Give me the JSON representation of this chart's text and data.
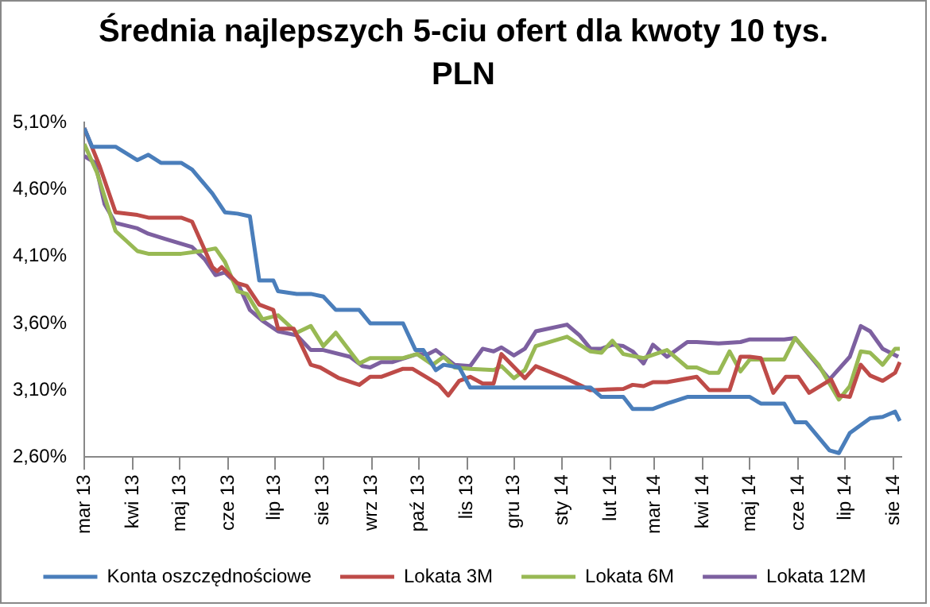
{
  "chart_data": {
    "type": "line",
    "title": "Średnia najlepszych 5-ciu ofert dla kwoty 10 tys. PLN",
    "xlim": [
      "2013-03-01",
      "2014-08-06"
    ],
    "xticks": [
      {
        "value": "2013-03-01",
        "label": "mar 13"
      },
      {
        "value": "2013-04-01",
        "label": "kwi 13"
      },
      {
        "value": "2013-05-01",
        "label": "maj 13"
      },
      {
        "value": "2013-06-01",
        "label": "cze 13"
      },
      {
        "value": "2013-07-01",
        "label": "lip 13"
      },
      {
        "value": "2013-08-01",
        "label": "sie 13"
      },
      {
        "value": "2013-09-01",
        "label": "wrz 13"
      },
      {
        "value": "2013-10-01",
        "label": "paź 13"
      },
      {
        "value": "2013-11-01",
        "label": "lis 13"
      },
      {
        "value": "2013-12-01",
        "label": "gru 13"
      },
      {
        "value": "2014-01-01",
        "label": "sty 14"
      },
      {
        "value": "2014-02-01",
        "label": "lut 14"
      },
      {
        "value": "2014-03-01",
        "label": "mar 14"
      },
      {
        "value": "2014-04-01",
        "label": "kwi 14"
      },
      {
        "value": "2014-05-01",
        "label": "maj 14"
      },
      {
        "value": "2014-06-01",
        "label": "cze 14"
      },
      {
        "value": "2014-07-01",
        "label": "lip 14"
      },
      {
        "value": "2014-08-01",
        "label": "sie 14"
      }
    ],
    "ylim": [
      2.6,
      5.1
    ],
    "yticks": [
      {
        "value": 2.6,
        "label": "2,60%"
      },
      {
        "value": 3.1,
        "label": "3,10%"
      },
      {
        "value": 3.6,
        "label": "3,60%"
      },
      {
        "value": 4.1,
        "label": "4,10%"
      },
      {
        "value": 4.6,
        "label": "4,60%"
      },
      {
        "value": 5.1,
        "label": "5,10%"
      }
    ],
    "legend": "bottom",
    "series": [
      {
        "name": "Konta oszczędnościowe",
        "color": "#4a7ebb",
        "x": [
          "2013-03-01",
          "2013-03-06",
          "2013-03-21",
          "2013-04-04",
          "2013-04-11",
          "2013-04-19",
          "2013-05-02",
          "2013-05-09",
          "2013-05-22",
          "2013-05-30",
          "2013-06-07",
          "2013-06-15",
          "2013-06-21",
          "2013-06-30",
          "2013-07-03",
          "2013-07-15",
          "2013-07-24",
          "2013-08-01",
          "2013-08-09",
          "2013-08-24",
          "2013-08-31",
          "2013-09-21",
          "2013-09-29",
          "2013-10-04",
          "2013-10-12",
          "2013-10-17",
          "2013-10-27",
          "2013-11-03",
          "2014-01-19",
          "2014-01-26",
          "2014-02-09",
          "2014-02-15",
          "2014-02-28",
          "2014-03-09",
          "2014-03-22",
          "2014-05-01",
          "2014-05-08",
          "2014-05-23",
          "2014-05-30",
          "2014-06-06",
          "2014-06-21",
          "2014-06-27",
          "2014-07-04",
          "2014-07-11",
          "2014-07-17",
          "2014-07-25",
          "2014-08-02",
          "2014-08-05"
        ],
        "values": [
          5.06,
          4.92,
          4.92,
          4.82,
          4.86,
          4.8,
          4.8,
          4.75,
          4.57,
          4.43,
          4.42,
          4.4,
          3.92,
          3.92,
          3.84,
          3.82,
          3.82,
          3.8,
          3.7,
          3.7,
          3.6,
          3.6,
          3.4,
          3.4,
          3.25,
          3.29,
          3.27,
          3.12,
          3.12,
          3.05,
          3.05,
          2.96,
          2.96,
          3.0,
          3.05,
          3.05,
          3.0,
          3.0,
          2.86,
          2.86,
          2.65,
          2.63,
          2.78,
          2.84,
          2.89,
          2.9,
          2.94,
          2.87
        ]
      },
      {
        "name": "Lokata 3M",
        "color": "#be4b48",
        "x": [
          "2013-03-01",
          "2013-03-11",
          "2013-03-21",
          "2013-04-04",
          "2013-04-11",
          "2013-05-02",
          "2013-05-09",
          "2013-05-22",
          "2013-05-25",
          "2013-05-28",
          "2013-06-07",
          "2013-06-13",
          "2013-06-21",
          "2013-06-30",
          "2013-07-03",
          "2013-07-13",
          "2013-07-24",
          "2013-07-30",
          "2013-08-11",
          "2013-08-24",
          "2013-08-31",
          "2013-09-07",
          "2013-09-21",
          "2013-09-27",
          "2013-10-07",
          "2013-10-14",
          "2013-10-20",
          "2013-10-27",
          "2013-11-03",
          "2013-11-11",
          "2013-11-18",
          "2013-11-23",
          "2013-12-08",
          "2013-12-15",
          "2014-01-03",
          "2014-01-19",
          "2014-02-09",
          "2014-02-15",
          "2014-02-22",
          "2014-02-28",
          "2014-03-09",
          "2014-03-28",
          "2014-04-05",
          "2014-04-18",
          "2014-04-25",
          "2014-05-01",
          "2014-05-08",
          "2014-05-16",
          "2014-05-24",
          "2014-06-01",
          "2014-06-08",
          "2014-06-22",
          "2014-06-27",
          "2014-07-04",
          "2014-07-11",
          "2014-07-17",
          "2014-07-25",
          "2014-08-02",
          "2014-08-05"
        ],
        "values": [
          5.06,
          4.77,
          4.43,
          4.41,
          4.39,
          4.39,
          4.36,
          4.02,
          3.99,
          4.02,
          3.9,
          3.88,
          3.74,
          3.7,
          3.56,
          3.56,
          3.29,
          3.27,
          3.19,
          3.14,
          3.2,
          3.2,
          3.26,
          3.26,
          3.19,
          3.14,
          3.06,
          3.17,
          3.2,
          3.15,
          3.15,
          3.37,
          3.19,
          3.28,
          3.19,
          3.1,
          3.11,
          3.14,
          3.13,
          3.16,
          3.16,
          3.2,
          3.1,
          3.1,
          3.35,
          3.35,
          3.34,
          3.08,
          3.2,
          3.2,
          3.08,
          3.18,
          3.06,
          3.05,
          3.29,
          3.21,
          3.17,
          3.23,
          3.31
        ]
      },
      {
        "name": "Lokata 6M",
        "color": "#98b954",
        "x": [
          "2013-03-01",
          "2013-03-09",
          "2013-03-21",
          "2013-04-04",
          "2013-04-11",
          "2013-05-02",
          "2013-05-15",
          "2013-05-24",
          "2013-05-30",
          "2013-06-07",
          "2013-06-13",
          "2013-06-23",
          "2013-07-03",
          "2013-07-15",
          "2013-07-24",
          "2013-08-01",
          "2013-08-09",
          "2013-08-24",
          "2013-08-31",
          "2013-09-21",
          "2013-09-30",
          "2013-10-10",
          "2013-10-17",
          "2013-10-24",
          "2013-11-03",
          "2013-11-18",
          "2013-11-23",
          "2013-12-01",
          "2013-12-08",
          "2013-12-15",
          "2014-01-04",
          "2014-01-19",
          "2014-01-26",
          "2014-02-02",
          "2014-02-09",
          "2014-02-22",
          "2014-03-09",
          "2014-03-22",
          "2014-03-28",
          "2014-04-05",
          "2014-04-11",
          "2014-04-18",
          "2014-04-25",
          "2014-05-01",
          "2014-05-23",
          "2014-05-30",
          "2014-06-14",
          "2014-06-27",
          "2014-07-04",
          "2014-07-11",
          "2014-07-17",
          "2014-07-25",
          "2014-08-02",
          "2014-08-05"
        ],
        "values": [
          4.94,
          4.73,
          4.29,
          4.14,
          4.12,
          4.12,
          4.14,
          4.16,
          4.06,
          3.84,
          3.82,
          3.63,
          3.66,
          3.53,
          3.58,
          3.43,
          3.53,
          3.3,
          3.34,
          3.34,
          3.37,
          3.29,
          3.35,
          3.27,
          3.26,
          3.25,
          3.28,
          3.19,
          3.25,
          3.43,
          3.5,
          3.39,
          3.38,
          3.47,
          3.37,
          3.34,
          3.4,
          3.27,
          3.27,
          3.23,
          3.23,
          3.39,
          3.24,
          3.33,
          3.33,
          3.49,
          3.29,
          3.03,
          3.13,
          3.39,
          3.38,
          3.29,
          3.41,
          3.41
        ]
      },
      {
        "name": "Lokata 12M",
        "color": "#7d60a0",
        "x": [
          "2013-03-01",
          "2013-03-08",
          "2013-03-14",
          "2013-03-21",
          "2013-04-04",
          "2013-04-11",
          "2013-04-22",
          "2013-05-09",
          "2013-05-17",
          "2013-05-24",
          "2013-05-30",
          "2013-06-08",
          "2013-06-15",
          "2013-06-23",
          "2013-07-03",
          "2013-07-15",
          "2013-07-24",
          "2013-08-01",
          "2013-08-18",
          "2013-08-26",
          "2013-08-31",
          "2013-09-07",
          "2013-09-14",
          "2013-09-30",
          "2013-10-07",
          "2013-10-12",
          "2013-10-24",
          "2013-11-03",
          "2013-11-11",
          "2013-11-18",
          "2013-11-23",
          "2013-12-01",
          "2013-12-08",
          "2013-12-15",
          "2014-01-04",
          "2014-01-12",
          "2014-01-19",
          "2014-01-26",
          "2014-02-02",
          "2014-02-09",
          "2014-02-15",
          "2014-02-22",
          "2014-02-28",
          "2014-03-09",
          "2014-03-22",
          "2014-03-28",
          "2014-04-11",
          "2014-04-25",
          "2014-05-01",
          "2014-05-23",
          "2014-05-30",
          "2014-06-21",
          "2014-07-04",
          "2014-07-11",
          "2014-07-17",
          "2014-07-25",
          "2014-08-04"
        ],
        "values": [
          4.85,
          4.8,
          4.49,
          4.35,
          4.31,
          4.27,
          4.23,
          4.17,
          4.08,
          3.96,
          3.98,
          3.88,
          3.7,
          3.62,
          3.54,
          3.51,
          3.4,
          3.4,
          3.35,
          3.28,
          3.27,
          3.31,
          3.31,
          3.37,
          3.37,
          3.4,
          3.29,
          3.28,
          3.41,
          3.39,
          3.42,
          3.36,
          3.41,
          3.54,
          3.59,
          3.51,
          3.41,
          3.41,
          3.44,
          3.43,
          3.39,
          3.3,
          3.44,
          3.35,
          3.46,
          3.46,
          3.45,
          3.46,
          3.48,
          3.48,
          3.49,
          3.18,
          3.35,
          3.58,
          3.54,
          3.41,
          3.35
        ]
      }
    ]
  }
}
